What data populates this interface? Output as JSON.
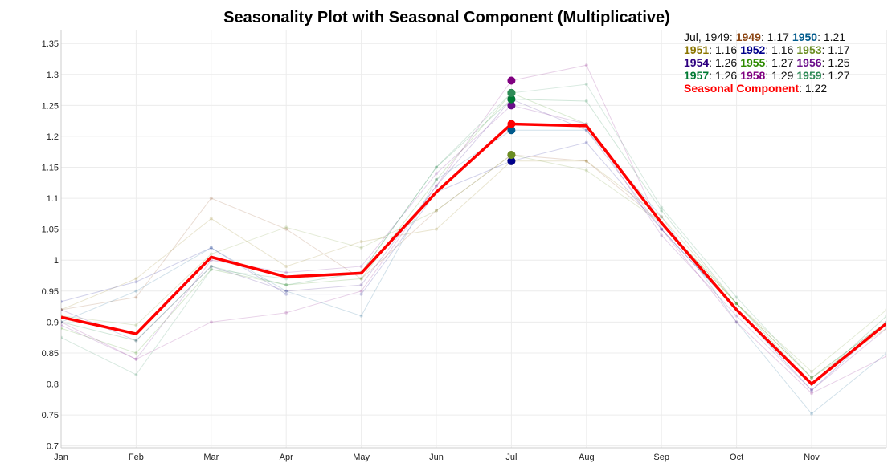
{
  "chart_data": {
    "type": "line",
    "title": "Seasonality Plot with Seasonal Component (Multiplicative)",
    "categories": [
      "Jan",
      "Feb",
      "Mar",
      "Apr",
      "May",
      "Jun",
      "Jul",
      "Aug",
      "Sep",
      "Oct",
      "Nov",
      null
    ],
    "ylim": [
      0.697,
      1.371
    ],
    "yticks": [
      0.7,
      0.75,
      0.8,
      0.85,
      0.9,
      0.95,
      1,
      1.05,
      1.1,
      1.15,
      1.2,
      1.25,
      1.3,
      1.35
    ],
    "grid": true,
    "hover_title": "Jul, 1949:",
    "series": [
      {
        "name": "1949",
        "color": "#8b4513",
        "values": [
          0.92,
          0.94,
          1.1,
          1.05,
          0.97,
          1.08,
          1.17,
          1.16,
          1.06,
          0.92,
          0.8,
          0.9
        ]
      },
      {
        "name": "1950",
        "color": "#005a8c",
        "values": [
          0.9,
          0.95,
          1.02,
          0.95,
          0.91,
          1.13,
          1.21,
          1.21,
          1.07,
          0.9,
          0.752,
          0.85
        ]
      },
      {
        "name": "1951",
        "color": "#8b7500",
        "values": [
          0.92,
          0.97,
          1.067,
          0.99,
          1.03,
          1.05,
          1.16,
          1.16,
          1.07,
          0.93,
          0.81,
          0.89
        ]
      },
      {
        "name": "1952",
        "color": "#00008b",
        "values": [
          0.933,
          0.965,
          1.02,
          0.945,
          0.945,
          1.11,
          1.16,
          1.19,
          1.05,
          0.92,
          0.79,
          0.9
        ]
      },
      {
        "name": "1953",
        "color": "#6b8e23",
        "values": [
          0.91,
          0.895,
          1.01,
          1.053,
          1.02,
          1.08,
          1.17,
          1.145,
          1.06,
          0.93,
          0.82,
          0.92
        ]
      },
      {
        "name": "1954",
        "color": "#2e0080",
        "values": [
          0.92,
          0.87,
          0.99,
          0.95,
          0.96,
          1.12,
          1.26,
          1.21,
          1.05,
          0.92,
          0.8,
          0.9
        ]
      },
      {
        "name": "1955",
        "color": "#2e8b00",
        "values": [
          0.89,
          0.85,
          0.985,
          0.96,
          0.97,
          1.13,
          1.27,
          1.22,
          1.06,
          0.93,
          0.81,
          0.9
        ]
      },
      {
        "name": "1956",
        "color": "#6a0d8a",
        "values": [
          0.895,
          0.84,
          1.0,
          0.98,
          0.99,
          1.14,
          1.25,
          1.22,
          1.04,
          0.91,
          0.79,
          0.89
        ]
      },
      {
        "name": "1957",
        "color": "#007a33",
        "values": [
          0.9,
          0.87,
          0.99,
          0.96,
          0.98,
          1.15,
          1.26,
          1.257,
          1.08,
          0.93,
          0.8,
          0.91
        ]
      },
      {
        "name": "1958",
        "color": "#800080",
        "values": [
          0.9,
          0.84,
          0.9,
          0.915,
          0.95,
          1.12,
          1.29,
          1.315,
          1.05,
          0.9,
          0.785,
          0.845
        ]
      },
      {
        "name": "1959",
        "color": "#2e8b57",
        "values": [
          0.875,
          0.815,
          0.985,
          0.97,
          0.98,
          1.15,
          1.27,
          1.284,
          1.085,
          0.94,
          0.81,
          0.9
        ]
      }
    ],
    "seasonal": {
      "name": "Seasonal Component",
      "color": "#ff0000",
      "values": [
        0.908,
        0.881,
        1.005,
        0.973,
        0.979,
        1.11,
        1.22,
        1.217,
        1.06,
        0.92,
        0.8,
        0.898
      ]
    }
  }
}
